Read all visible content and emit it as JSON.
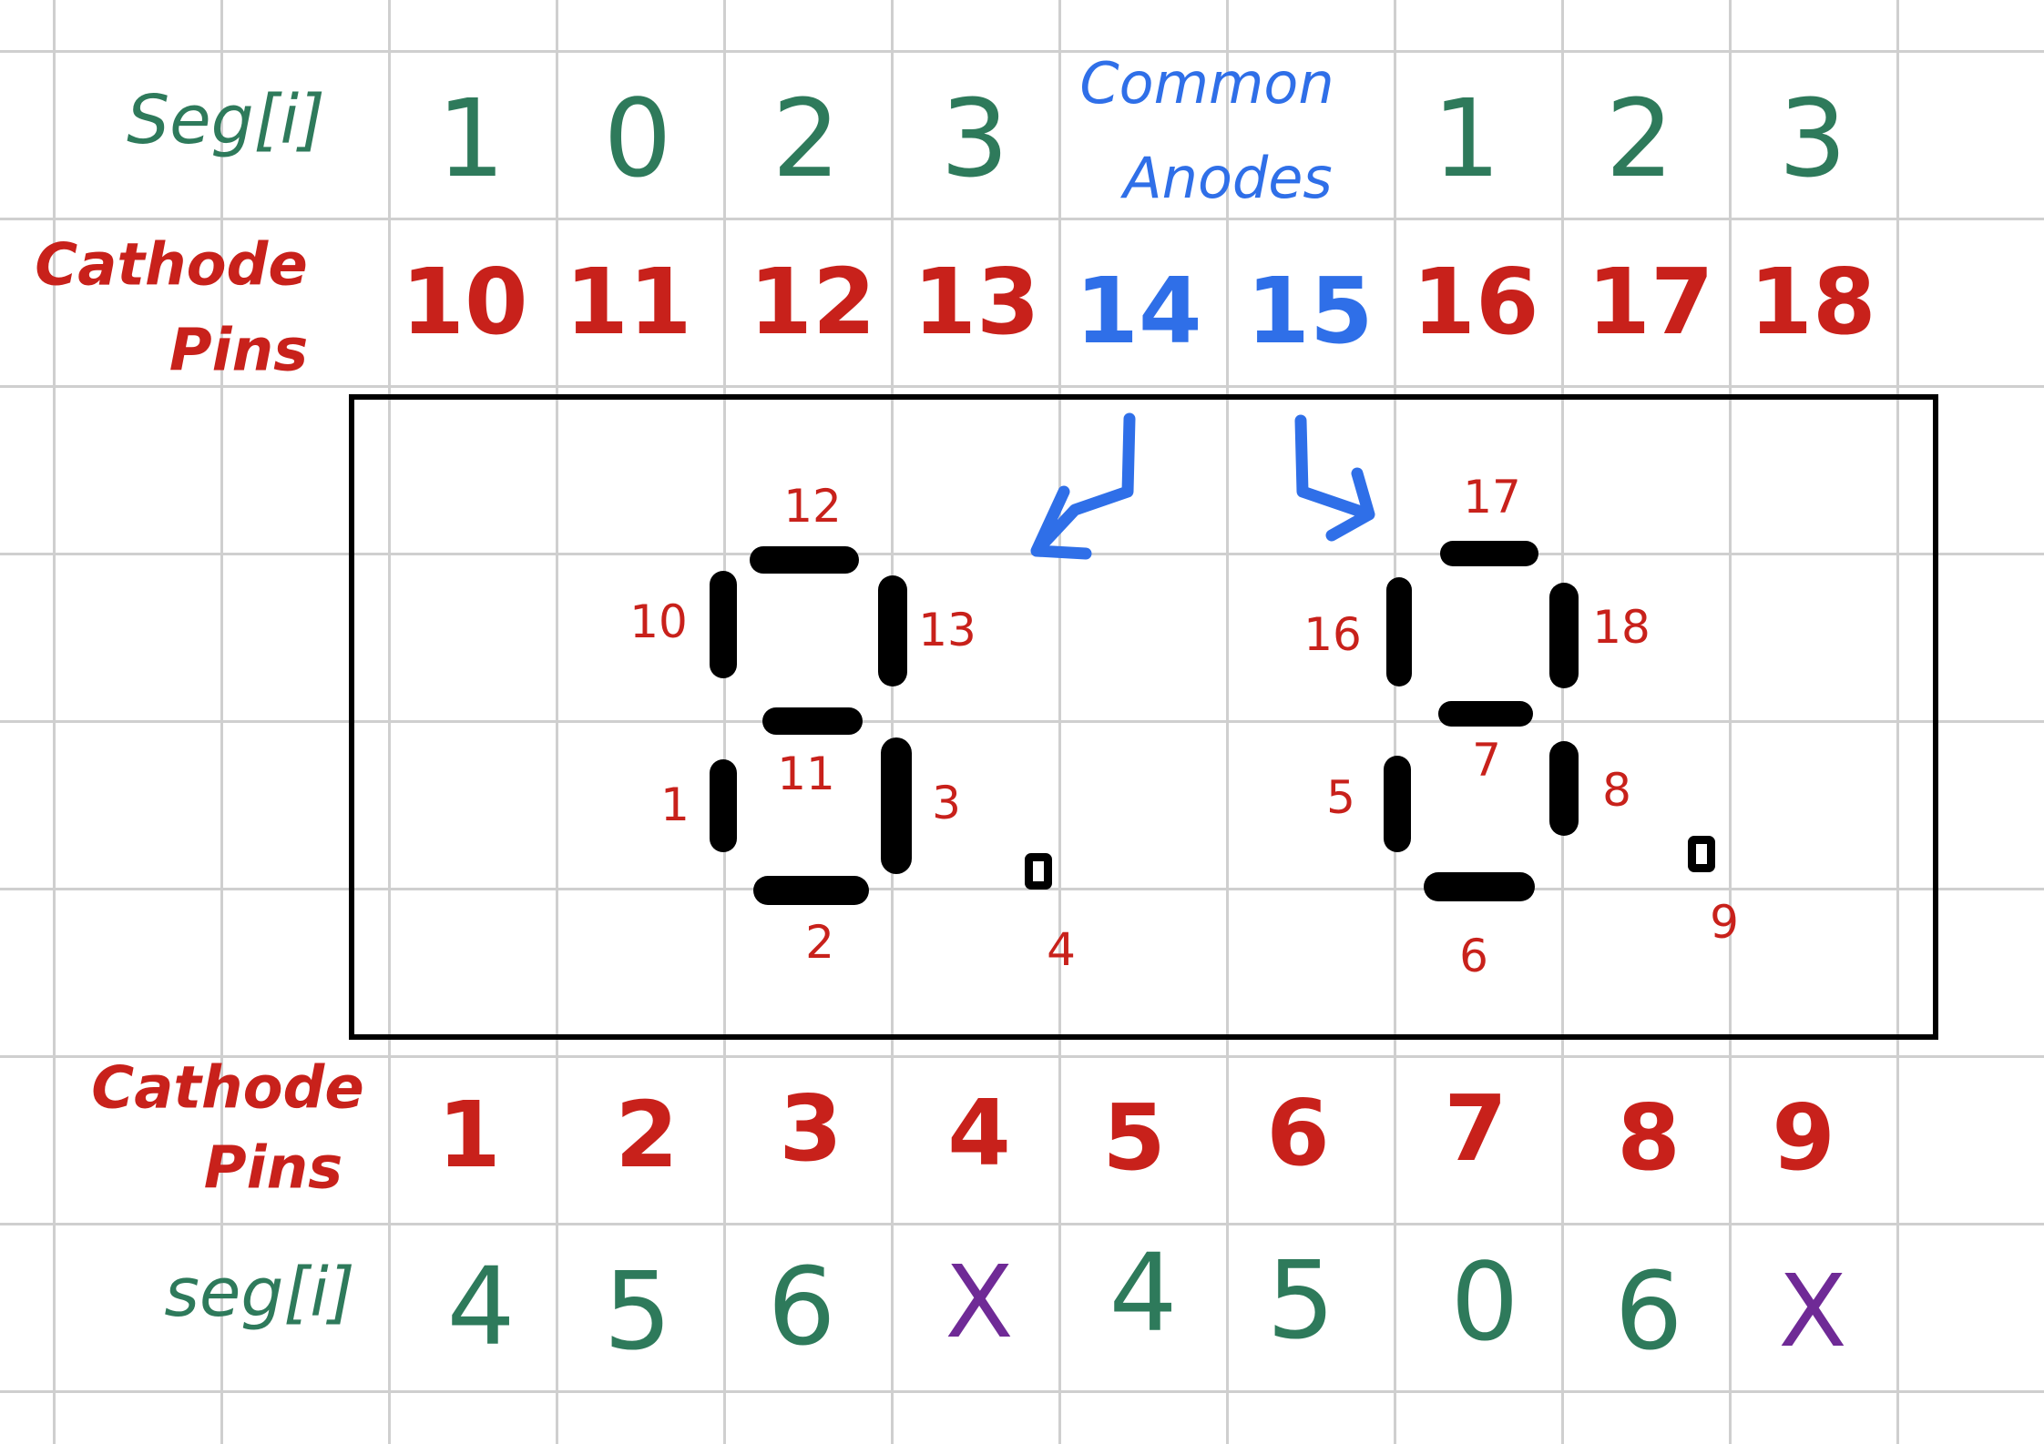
{
  "top_header": {
    "seg_label": "Seg[i]",
    "common_anodes_label_line1": "Common",
    "common_anodes_label_line2": "Anodes",
    "cathode_label_line1": "Cathode",
    "cathode_label_line2": "Pins"
  },
  "top_seg_values": [
    "1",
    "0",
    "2",
    "3",
    "1",
    "2",
    "3"
  ],
  "top_pins": [
    "10",
    "11",
    "12",
    "13",
    "14",
    "15",
    "16",
    "17",
    "18"
  ],
  "digit_left": {
    "labels": {
      "top": "12",
      "upper_left": "10",
      "upper_right": "13",
      "middle": "11",
      "lower_left": "1",
      "lower_right": "3",
      "bottom": "2",
      "dp": "4"
    }
  },
  "digit_right": {
    "labels": {
      "top": "17",
      "upper_left": "16",
      "upper_right": "18",
      "middle": "7",
      "lower_left": "5",
      "lower_right": "8",
      "bottom": "6",
      "dp": "9"
    }
  },
  "bottom_header": {
    "cathode_label_line1": "Cathode",
    "cathode_label_line2": "Pins",
    "seg_label": "seg[i]"
  },
  "bottom_pins": [
    "1",
    "2",
    "3",
    "4",
    "5",
    "6",
    "7",
    "8",
    "9"
  ],
  "bottom_seg_values": [
    "4",
    "5",
    "6",
    "X",
    "4",
    "5",
    "0",
    "6",
    "X"
  ],
  "colors": {
    "green": "#2e7a5b",
    "red": "#c8211b",
    "blue": "#2f6fe8",
    "purple": "#6f2a96",
    "black": "#000000",
    "grid": "#cfcfcf"
  }
}
